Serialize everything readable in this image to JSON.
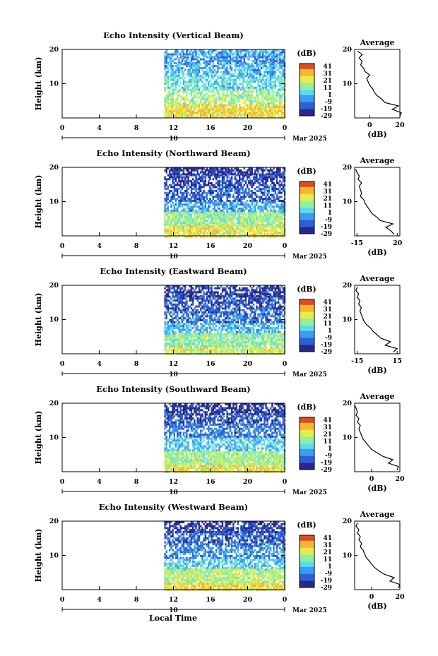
{
  "figure": {
    "xlabel": "Local Time",
    "date_label": "Mar 2025",
    "day_label": "10",
    "colorbar_unit": "(dB)",
    "colorbar_ticks": [
      "41",
      "31",
      "21",
      "11",
      "1",
      "-9",
      "-19",
      "-29"
    ],
    "average_title": "Average",
    "average_xlabel": "(dB)"
  },
  "colors": {
    "colormap": [
      "#28288c",
      "#2d5fd8",
      "#3c9cf0",
      "#58dcf0",
      "#8ef0a0",
      "#e6ec4a",
      "#f6b432",
      "#e04c1e"
    ]
  },
  "chart_data": [
    {
      "type": "heatmap",
      "title": "Echo Intensity (Vertical Beam)",
      "ylabel": "Height (km)",
      "xlabel": "Local Time",
      "x_ticks": [
        "0",
        "4",
        "8",
        "12",
        "16",
        "20",
        "0"
      ],
      "y_ticks": [
        "20",
        "10"
      ],
      "xlim": [
        0,
        24
      ],
      "ylim": [
        0,
        20
      ],
      "data_start_hour": 11,
      "colorbar_range": [
        -29,
        41
      ],
      "profile_rows": [
        {
          "h": [
            18,
            20
          ],
          "dB": -6
        },
        {
          "h": [
            16,
            18
          ],
          "dB": -10
        },
        {
          "h": [
            12,
            16
          ],
          "dB": -4
        },
        {
          "h": [
            8,
            12
          ],
          "dB": 2
        },
        {
          "h": [
            4,
            8
          ],
          "dB": 12
        },
        {
          "h": [
            0,
            4
          ],
          "dB": 22
        }
      ],
      "average": {
        "x_ticks": [
          "0",
          "20"
        ],
        "xlim": [
          -10,
          20
        ],
        "ylim": [
          0,
          20
        ],
        "height": [
          0.5,
          1.5,
          2.5,
          3.5,
          4.5,
          5.5,
          6.5,
          7.5,
          8.5,
          9.5,
          10.5,
          11.5,
          12.5,
          13.5,
          14.5,
          15.5,
          16.5,
          17.5,
          18.5,
          19.5
        ],
        "dB": [
          20,
          21,
          15,
          19,
          10,
          8,
          5,
          3,
          2,
          0,
          -1,
          -2,
          0,
          -3,
          -4,
          -6,
          -5,
          -7,
          -5,
          -8
        ]
      }
    },
    {
      "type": "heatmap",
      "title": "Echo Intensity (Northward Beam)",
      "ylabel": "Height (km)",
      "xlabel": "Local Time",
      "x_ticks": [
        "0",
        "4",
        "8",
        "12",
        "16",
        "20",
        "0"
      ],
      "y_ticks": [
        "20",
        "10"
      ],
      "xlim": [
        0,
        24
      ],
      "ylim": [
        0,
        20
      ],
      "data_start_hour": 11,
      "colorbar_range": [
        -29,
        41
      ],
      "profile_rows": [
        {
          "h": [
            18,
            20
          ],
          "dB": -25
        },
        {
          "h": [
            14,
            18
          ],
          "dB": -20
        },
        {
          "h": [
            10,
            14
          ],
          "dB": -16
        },
        {
          "h": [
            7,
            10
          ],
          "dB": -6
        },
        {
          "h": [
            3,
            7
          ],
          "dB": 12
        },
        {
          "h": [
            0,
            3
          ],
          "dB": 20
        }
      ],
      "average": {
        "x_ticks": [
          "-15",
          "20"
        ],
        "xlim": [
          -17,
          22
        ],
        "ylim": [
          0,
          20
        ],
        "height": [
          0.5,
          1.5,
          2.5,
          3.5,
          4.5,
          5.5,
          6.5,
          7.5,
          8.5,
          9.5,
          10.5,
          11.5,
          12.5,
          13.5,
          14.5,
          15.5,
          16.5,
          17.5,
          18.5,
          19.5
        ],
        "dB": [
          17,
          14,
          10,
          16,
          5,
          2,
          -2,
          -4,
          -6,
          -8,
          -9,
          -12,
          -11,
          -12,
          -13,
          -11,
          -14,
          -13,
          -15,
          -16
        ]
      }
    },
    {
      "type": "heatmap",
      "title": "Echo Intensity (Eastward Beam)",
      "ylabel": "Height (km)",
      "xlabel": "Local Time",
      "x_ticks": [
        "0",
        "4",
        "8",
        "12",
        "16",
        "20",
        "0"
      ],
      "y_ticks": [
        "20",
        "10"
      ],
      "xlim": [
        0,
        24
      ],
      "ylim": [
        0,
        20
      ],
      "data_start_hour": 11,
      "colorbar_range": [
        -29,
        41
      ],
      "profile_rows": [
        {
          "h": [
            17,
            20
          ],
          "dB": -22
        },
        {
          "h": [
            13,
            17
          ],
          "dB": -18
        },
        {
          "h": [
            9,
            13
          ],
          "dB": -14
        },
        {
          "h": [
            6,
            9
          ],
          "dB": -4
        },
        {
          "h": [
            2,
            6
          ],
          "dB": 10
        },
        {
          "h": [
            0,
            2
          ],
          "dB": 18
        }
      ],
      "average": {
        "x_ticks": [
          "-15",
          "15"
        ],
        "xlim": [
          -17,
          17
        ],
        "ylim": [
          0,
          20
        ],
        "height": [
          0.5,
          1.5,
          2.5,
          3.5,
          4.5,
          5.5,
          6.5,
          7.5,
          8.5,
          9.5,
          10.5,
          11.5,
          12.5,
          13.5,
          14.5,
          15.5,
          16.5,
          17.5,
          18.5,
          19.5
        ],
        "dB": [
          12,
          15,
          6,
          10,
          3,
          0,
          -3,
          -5,
          -8,
          -10,
          -11,
          -12,
          -13,
          -12,
          -14,
          -13,
          -15,
          -14,
          -16,
          -15
        ]
      }
    },
    {
      "type": "heatmap",
      "title": "Echo Intensity (Southward Beam)",
      "ylabel": "Height (km)",
      "xlabel": "Local Time",
      "x_ticks": [
        "0",
        "4",
        "8",
        "12",
        "16",
        "20",
        "0"
      ],
      "y_ticks": [
        "20",
        "10"
      ],
      "xlim": [
        0,
        24
      ],
      "ylim": [
        0,
        20
      ],
      "data_start_hour": 11,
      "colorbar_range": [
        -29,
        41
      ],
      "profile_rows": [
        {
          "h": [
            17,
            20
          ],
          "dB": -24
        },
        {
          "h": [
            14,
            17
          ],
          "dB": -18
        },
        {
          "h": [
            10,
            14
          ],
          "dB": -12
        },
        {
          "h": [
            6,
            10
          ],
          "dB": -2
        },
        {
          "h": [
            2,
            6
          ],
          "dB": 12
        },
        {
          "h": [
            0,
            2
          ],
          "dB": 20
        }
      ],
      "average": {
        "x_ticks": [
          "0",
          "20"
        ],
        "xlim": [
          -12,
          20
        ],
        "ylim": [
          0,
          20
        ],
        "height": [
          0.5,
          1.5,
          2.5,
          3.5,
          4.5,
          5.5,
          6.5,
          7.5,
          8.5,
          9.5,
          10.5,
          11.5,
          12.5,
          13.5,
          14.5,
          15.5,
          16.5,
          17.5,
          18.5,
          19.5
        ],
        "dB": [
          18,
          19,
          12,
          15,
          8,
          4,
          0,
          -2,
          -4,
          -6,
          -7,
          -8,
          -9,
          -8,
          -10,
          -9,
          -11,
          -10,
          -11,
          -12
        ]
      }
    },
    {
      "type": "heatmap",
      "title": "Echo Intensity (Westward Beam)",
      "ylabel": "Height (km)",
      "xlabel": "Local Time",
      "x_ticks": [
        "0",
        "4",
        "8",
        "12",
        "16",
        "20",
        "0"
      ],
      "y_ticks": [
        "20",
        "10"
      ],
      "xlim": [
        0,
        24
      ],
      "ylim": [
        0,
        20
      ],
      "data_start_hour": 11,
      "colorbar_range": [
        -29,
        41
      ],
      "profile_rows": [
        {
          "h": [
            17,
            20
          ],
          "dB": -22
        },
        {
          "h": [
            13,
            17
          ],
          "dB": -16
        },
        {
          "h": [
            9,
            13
          ],
          "dB": -10
        },
        {
          "h": [
            6,
            9
          ],
          "dB": 0
        },
        {
          "h": [
            2,
            6
          ],
          "dB": 14
        },
        {
          "h": [
            0,
            2
          ],
          "dB": 22
        }
      ],
      "average": {
        "x_ticks": [
          "0",
          "20"
        ],
        "xlim": [
          -12,
          20
        ],
        "ylim": [
          0,
          20
        ],
        "height": [
          0.5,
          1.5,
          2.5,
          3.5,
          4.5,
          5.5,
          6.5,
          7.5,
          8.5,
          9.5,
          10.5,
          11.5,
          12.5,
          13.5,
          14.5,
          15.5,
          16.5,
          17.5,
          18.5,
          19.5
        ],
        "dB": [
          19,
          20,
          13,
          16,
          9,
          5,
          2,
          0,
          -2,
          -4,
          -5,
          -6,
          -8,
          -7,
          -9,
          -8,
          -10,
          -9,
          -11,
          -10
        ]
      }
    }
  ]
}
